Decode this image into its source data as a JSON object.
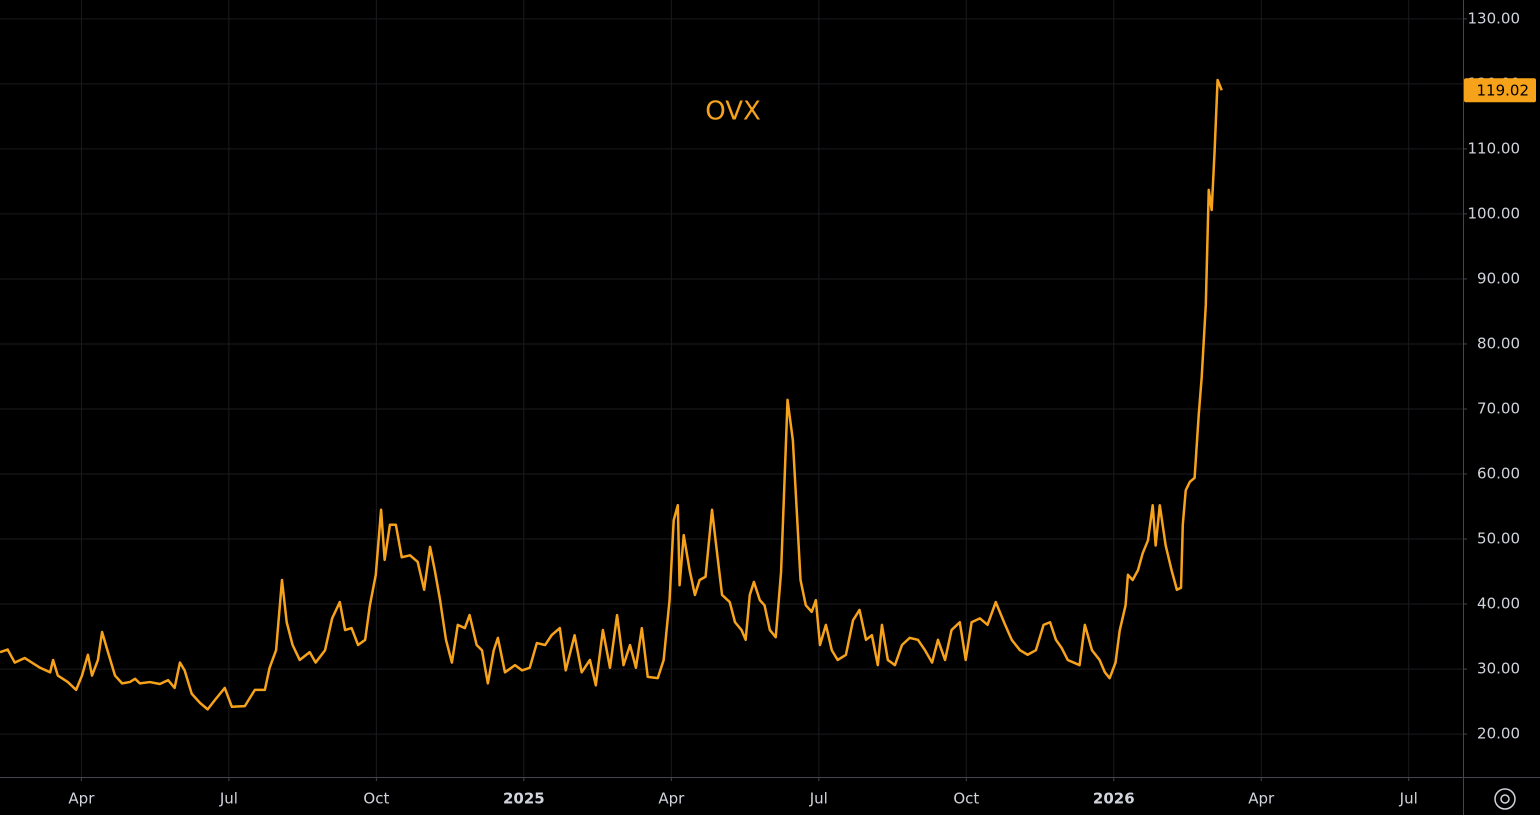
{
  "chart_data": {
    "type": "line",
    "grid": true,
    "xlim": [
      2024.112,
      2026.592
    ],
    "ylim": [
      13.4,
      132.9
    ],
    "xticks": [
      {
        "value": 2024.25,
        "label": "Apr"
      },
      {
        "value": 2024.5,
        "label": "Jul"
      },
      {
        "value": 2024.75,
        "label": "Oct"
      },
      2025,
      {
        "value": 2025.25,
        "label": "Apr"
      },
      {
        "value": 2025.5,
        "label": "Jul"
      },
      {
        "value": 2025.75,
        "label": "Oct"
      },
      2026,
      {
        "value": 2026.25,
        "label": "Apr"
      },
      {
        "value": 2026.5,
        "label": "Jul"
      }
    ],
    "yticks": [
      {
        "value": 20,
        "label": "20.00"
      },
      {
        "value": 30,
        "label": "30.00"
      },
      {
        "value": 40,
        "label": "40.00"
      },
      {
        "value": 50,
        "label": "50.00"
      },
      {
        "value": 60,
        "label": "60.00"
      },
      {
        "value": 70,
        "label": "70.00"
      },
      {
        "value": 80,
        "label": "80.00"
      },
      {
        "value": 90,
        "label": "90.00"
      },
      {
        "value": 100,
        "label": "100.00"
      },
      {
        "value": 110,
        "label": "110.00"
      },
      {
        "value": 120,
        "label": "120.00"
      },
      {
        "value": 130,
        "label": "130.00"
      }
    ],
    "series": [
      {
        "name": "OVX",
        "color": "#f7a21b",
        "x": [
          2024.112,
          2024.125,
          2024.137,
          2024.154,
          2024.18,
          2024.197,
          2024.202,
          2024.21,
          2024.227,
          2024.241,
          2024.251,
          2024.261,
          2024.268,
          2024.278,
          2024.285,
          2024.295,
          2024.307,
          2024.319,
          2024.332,
          2024.341,
          2024.349,
          2024.366,
          2024.383,
          2024.397,
          2024.408,
          2024.417,
          2024.425,
          2024.437,
          2024.451,
          2024.464,
          2024.476,
          2024.493,
          2024.505,
          2024.527,
          2024.544,
          2024.561,
          2024.569,
          2024.58,
          2024.59,
          2024.598,
          2024.608,
          2024.62,
          2024.637,
          2024.647,
          2024.663,
          2024.675,
          2024.688,
          2024.697,
          2024.708,
          2024.719,
          2024.731,
          2024.739,
          2024.749,
          2024.758,
          2024.764,
          2024.773,
          2024.783,
          2024.793,
          2024.807,
          2024.82,
          2024.831,
          2024.841,
          2024.849,
          2024.858,
          2024.868,
          2024.878,
          2024.888,
          2024.9,
          2024.908,
          2024.92,
          2024.929,
          2024.939,
          2024.949,
          2024.956,
          2024.968,
          2024.985,
          2024.997,
          2025.01,
          2025.022,
          2025.036,
          2025.047,
          2025.061,
          2025.071,
          2025.086,
          2025.098,
          2025.112,
          2025.122,
          2025.134,
          2025.146,
          2025.158,
          2025.169,
          2025.18,
          2025.19,
          2025.2,
          2025.21,
          2025.227,
          2025.237,
          2025.247,
          2025.254,
          2025.261,
          2025.264,
          2025.271,
          2025.281,
          2025.29,
          2025.298,
          2025.308,
          2025.319,
          2025.325,
          2025.336,
          2025.349,
          2025.358,
          2025.369,
          2025.376,
          2025.383,
          2025.39,
          2025.4,
          2025.408,
          2025.417,
          2025.427,
          2025.436,
          2025.441,
          2025.447,
          2025.456,
          2025.463,
          2025.469,
          2025.478,
          2025.488,
          2025.495,
          2025.502,
          2025.512,
          2025.522,
          2025.532,
          2025.546,
          2025.558,
          2025.569,
          2025.58,
          2025.59,
          2025.6,
          2025.607,
          2025.617,
          2025.629,
          2025.641,
          2025.654,
          2025.668,
          2025.68,
          2025.692,
          2025.702,
          2025.714,
          2025.725,
          2025.739,
          2025.749,
          2025.759,
          2025.773,
          2025.786,
          2025.8,
          2025.814,
          2025.827,
          2025.841,
          2025.854,
          2025.868,
          2025.881,
          2025.892,
          2025.902,
          2025.912,
          2025.922,
          2025.932,
          2025.942,
          2025.951,
          2025.963,
          2025.976,
          2025.985,
          2025.993,
          2026.003,
          2026.01,
          2026.02,
          2026.024,
          2026.032,
          2026.041,
          2026.049,
          2026.058,
          2026.066,
          2026.071,
          2026.078,
          2026.088,
          2026.098,
          2026.107,
          2026.114,
          2026.117,
          2026.122,
          2026.129,
          2026.137,
          2026.144,
          2026.149,
          2026.156,
          2026.161,
          2026.166,
          2026.171,
          2026.176,
          2026.183
        ],
        "values": [
          32.6,
          33,
          31,
          31.7,
          30.2,
          29.5,
          31.4,
          29,
          28,
          26.8,
          29,
          32.2,
          29,
          31.4,
          35.7,
          32.6,
          29,
          27.8,
          28,
          28.5,
          27.8,
          28,
          27.7,
          28.3,
          27.1,
          31,
          29.8,
          26.2,
          24.8,
          23.8,
          25.2,
          27.1,
          24.2,
          24.3,
          26.8,
          26.8,
          30.2,
          32.9,
          43.7,
          37.2,
          33.7,
          31.4,
          32.6,
          31,
          32.9,
          37.8,
          40.3,
          36,
          36.3,
          33.7,
          34.5,
          39.8,
          44.5,
          54.5,
          46.8,
          52.2,
          52.2,
          47.2,
          47.5,
          46.5,
          42.2,
          48.8,
          45.2,
          40.6,
          34.5,
          31,
          36.8,
          36.3,
          38.3,
          33.7,
          32.9,
          27.8,
          32.9,
          34.8,
          29.5,
          30.6,
          29.8,
          30.2,
          34,
          33.7,
          35.2,
          36.3,
          29.8,
          35.2,
          29.5,
          31.4,
          27.5,
          36,
          30.2,
          38.3,
          30.6,
          33.7,
          30.2,
          36.3,
          28.8,
          28.6,
          31.4,
          40.6,
          52.9,
          55.2,
          42.9,
          50.6,
          45.2,
          41.4,
          43.7,
          44.2,
          54.5,
          49.8,
          41.4,
          40.3,
          37.2,
          36,
          34.5,
          41.4,
          43.4,
          40.6,
          39.8,
          36,
          34.9,
          44.9,
          56.8,
          71.4,
          65.2,
          53.7,
          43.7,
          39.8,
          38.8,
          40.6,
          33.7,
          36.8,
          32.9,
          31.4,
          32.2,
          37.5,
          39.1,
          34.5,
          35.2,
          30.6,
          36.8,
          31.4,
          30.6,
          33.7,
          34.8,
          34.5,
          32.9,
          31,
          34.5,
          31.4,
          36,
          37.2,
          31.4,
          37.2,
          37.8,
          36.8,
          40.3,
          37.2,
          34.5,
          32.9,
          32.2,
          32.9,
          36.8,
          37.2,
          34.5,
          33.2,
          31.4,
          31,
          30.6,
          36.8,
          32.9,
          31.4,
          29.5,
          28.6,
          31,
          35.9,
          39.8,
          44.5,
          43.7,
          45.2,
          47.8,
          49.8,
          55.2,
          49,
          55.2,
          49,
          45.2,
          42.2,
          42.5,
          52.2,
          57.5,
          58.8,
          59.4,
          69.1,
          74.8,
          86,
          103.7,
          100.6,
          109.8,
          120.6,
          119.02
        ]
      }
    ]
  }
}
